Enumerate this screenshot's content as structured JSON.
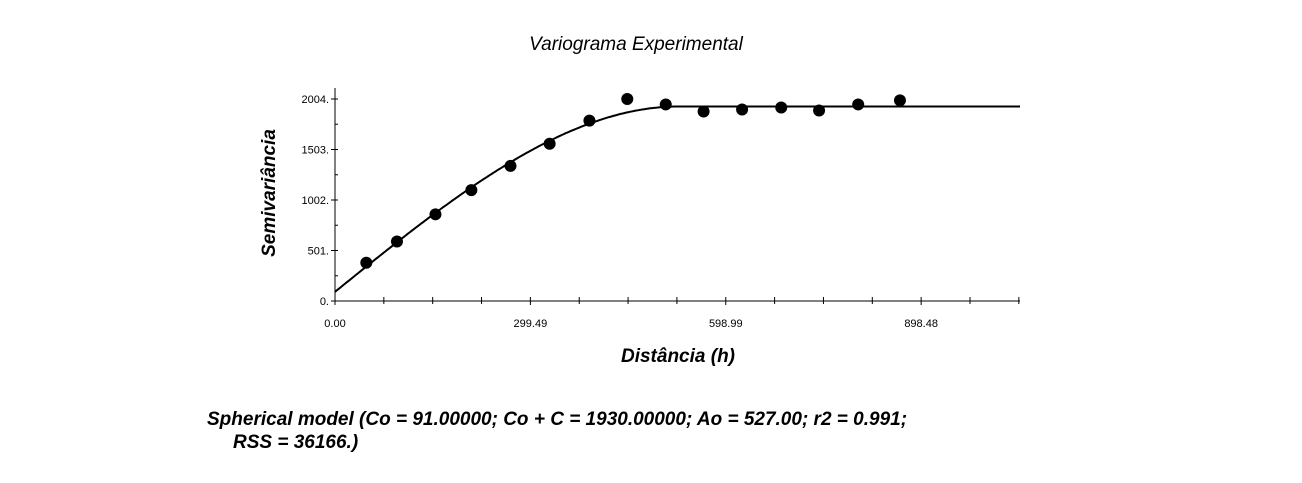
{
  "chart_data": {
    "type": "scatter",
    "title": "Variograma Experimental",
    "xlabel": "Distância (h)",
    "ylabel": "Semivariância",
    "xlim": [
      0,
      1050
    ],
    "ylim": [
      0,
      2004
    ],
    "x_ticks": [
      0,
      299.49,
      598.99,
      898.48
    ],
    "x_tick_labels": [
      "0.00",
      "299.49",
      "598.99",
      "898.48"
    ],
    "y_ticks": [
      0,
      501,
      1002,
      1503,
      2004
    ],
    "y_tick_labels": [
      "0.",
      "501.",
      "1002.",
      "1503.",
      "2004."
    ],
    "grid": false,
    "points": {
      "x": [
        48,
        95,
        154,
        209,
        269,
        329,
        390,
        448,
        507,
        565,
        624,
        684,
        742,
        802,
        866
      ],
      "y": [
        380,
        590,
        860,
        1100,
        1340,
        1560,
        1790,
        2004,
        1950,
        1880,
        1900,
        1920,
        1890,
        1950,
        1990
      ]
    },
    "model": {
      "type": "spherical",
      "nugget": 91,
      "sill": 1930,
      "range": 527
    }
  },
  "caption": {
    "line1": "Spherical model (Co = 91.00000; Co + C = 1930.00000; Ao = 527.00; r2 = 0.991;",
    "line2": "RSS = 36166.)"
  }
}
